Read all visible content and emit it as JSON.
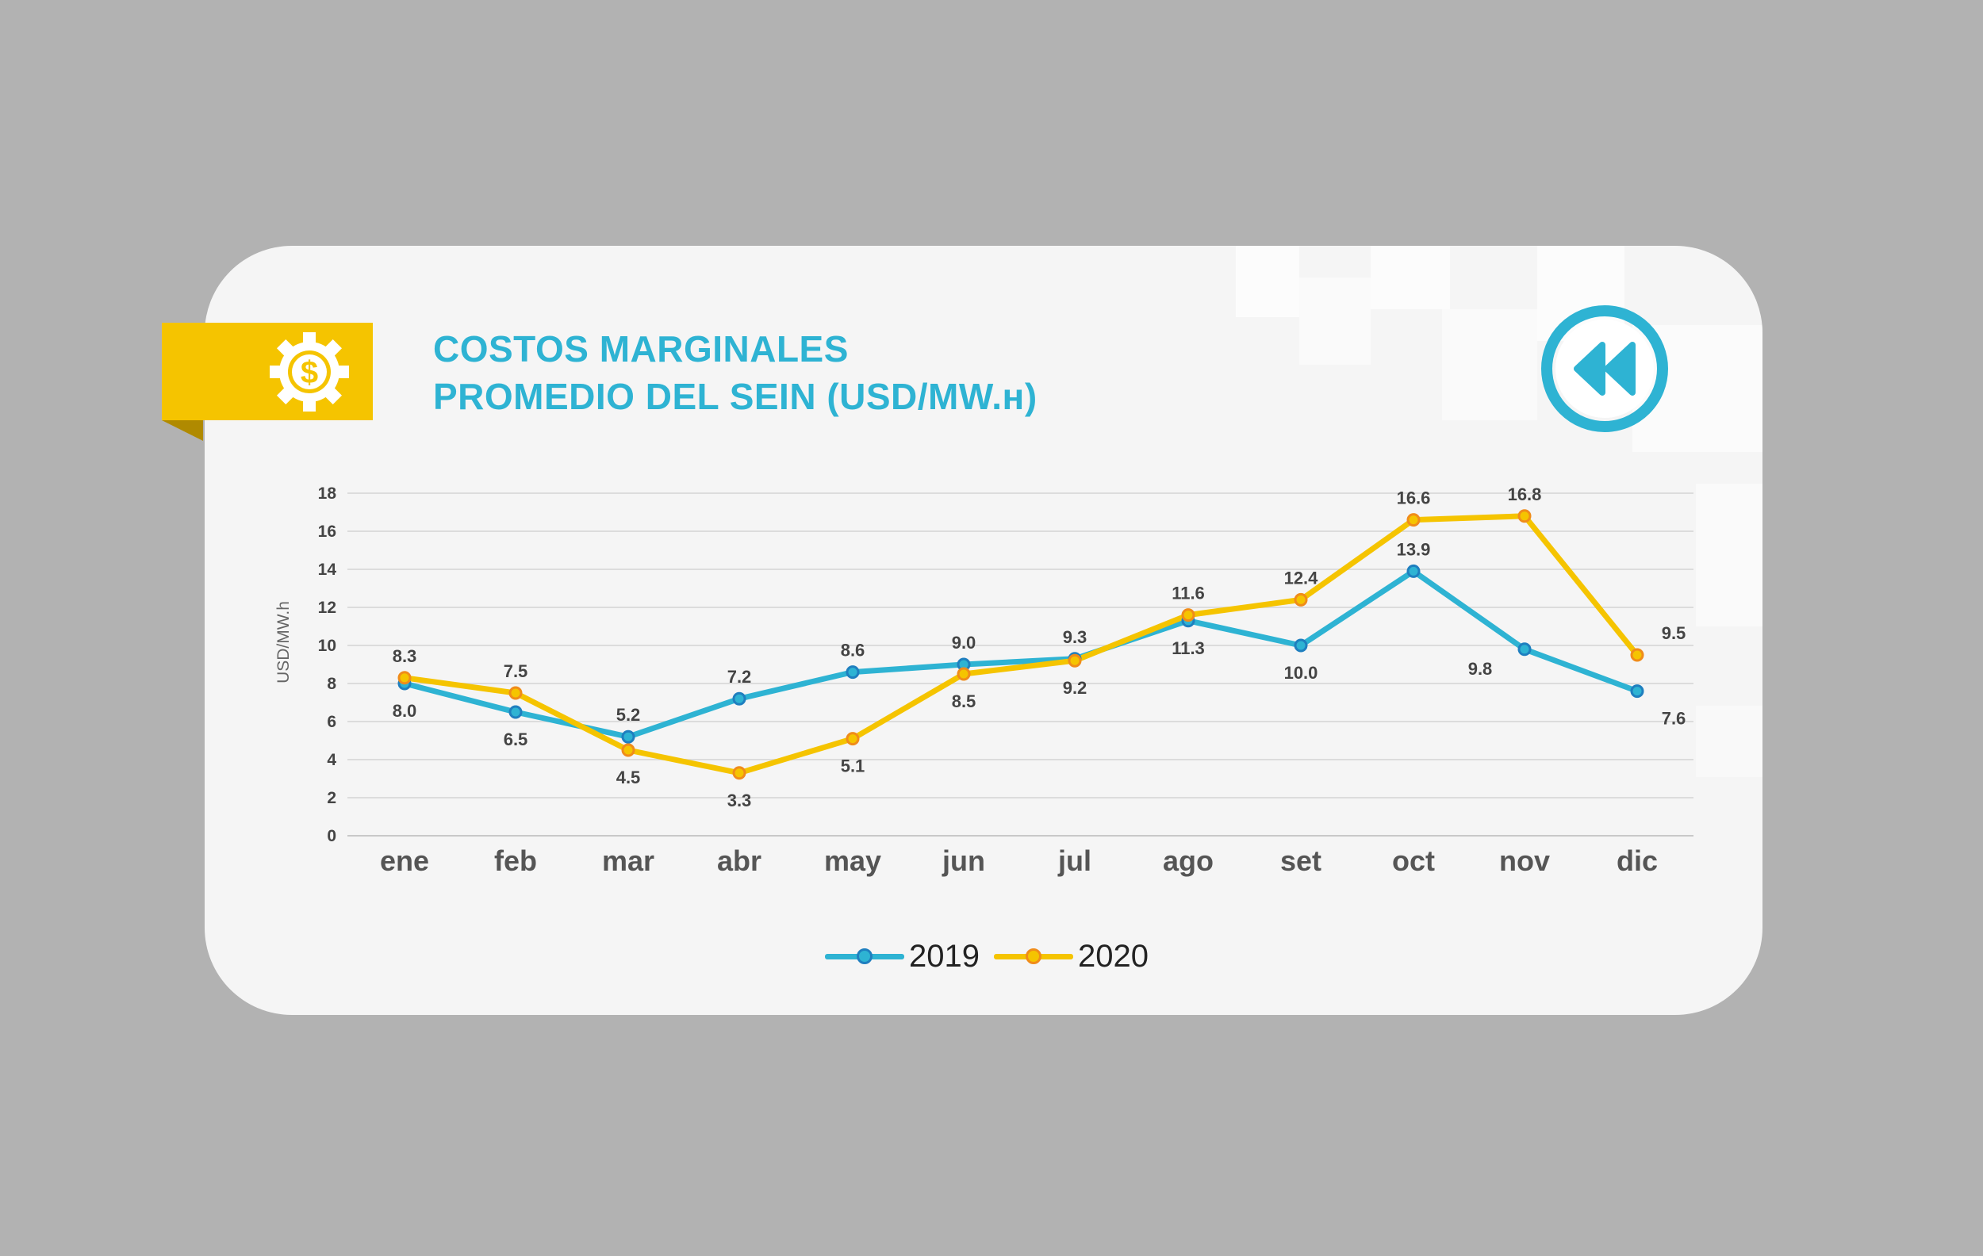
{
  "header": {
    "title_line1": "COSTOS MARGINALES",
    "title_line2": "PROMEDIO DEL SEIN (USD/MW.н)",
    "badge_icon": "gear-dollar-icon",
    "back_icon": "rewind-icon"
  },
  "colors": {
    "series_2019": "#2eb3d3",
    "series_2020": "#f5c400",
    "marker_2020_stroke": "#f08c1a",
    "marker_2019_stroke": "#1f7fbf",
    "accent": "#2eb3d3",
    "badge": "#f5c400",
    "background": "#b2b2b2",
    "card": "#f5f5f5"
  },
  "chart_data": {
    "type": "line",
    "categories": [
      "ene",
      "feb",
      "mar",
      "abr",
      "may",
      "jun",
      "jul",
      "ago",
      "set",
      "oct",
      "nov",
      "dic"
    ],
    "series": [
      {
        "name": "2019",
        "values": [
          8.0,
          6.5,
          5.2,
          7.2,
          8.6,
          9.0,
          9.3,
          11.3,
          10.0,
          13.9,
          9.8,
          7.6
        ]
      },
      {
        "name": "2020",
        "values": [
          8.3,
          7.5,
          4.5,
          3.3,
          5.1,
          8.5,
          9.2,
          11.6,
          12.4,
          16.6,
          16.8,
          9.5
        ]
      }
    ],
    "labels_2019": [
      "8.0",
      "6.5",
      "5.2",
      "7.2",
      "8.6",
      "9.0",
      "9.3",
      "11.3",
      "10.0",
      "13.9",
      "9.8",
      "7.6"
    ],
    "labels_2020": [
      "8.3",
      "7.5",
      "4.5",
      "3.3",
      "5.1",
      "8.5",
      "9.2",
      "11.6",
      "12.4",
      "16.6",
      "16.8",
      "9.5"
    ],
    "ylabel": "USD/MW.h",
    "xlabel": "",
    "ylim": [
      0,
      18
    ],
    "yticks": [
      "0",
      "2",
      "4",
      "6",
      "8",
      "10",
      "12",
      "14",
      "16",
      "18"
    ],
    "grid": true,
    "legend_position": "bottom-center"
  },
  "legend": {
    "item_2019": "2019",
    "item_2020": "2020"
  }
}
